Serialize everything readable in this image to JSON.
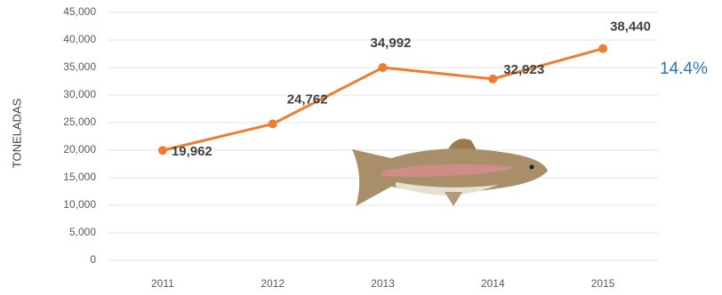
{
  "chart_data": {
    "type": "line",
    "y_label": "TONELADAS",
    "categories": [
      "2011",
      "2012",
      "2013",
      "2014",
      "2015"
    ],
    "values": [
      19962,
      24762,
      34992,
      32923,
      38440
    ],
    "value_labels": [
      "19,962",
      "24,762",
      "34,992",
      "32,923",
      "38,440"
    ],
    "color": "#ed7d31",
    "ylim": [
      0,
      45000
    ],
    "yticks": [
      0,
      {
        "value": 5000,
        "label": "5,000"
      },
      {
        "value": 10000,
        "label": "10,000"
      },
      {
        "value": 15000,
        "label": "15,000"
      },
      {
        "value": 20000,
        "label": "20,000"
      },
      {
        "value": 25000,
        "label": "25,000"
      },
      {
        "value": 30000,
        "label": "30,000"
      },
      {
        "value": 35000,
        "label": "35,000"
      },
      {
        "value": 40000,
        "label": "40,000"
      },
      {
        "value": 45000,
        "label": "45,000"
      }
    ],
    "grid": true,
    "annotation": "14.4%"
  }
}
